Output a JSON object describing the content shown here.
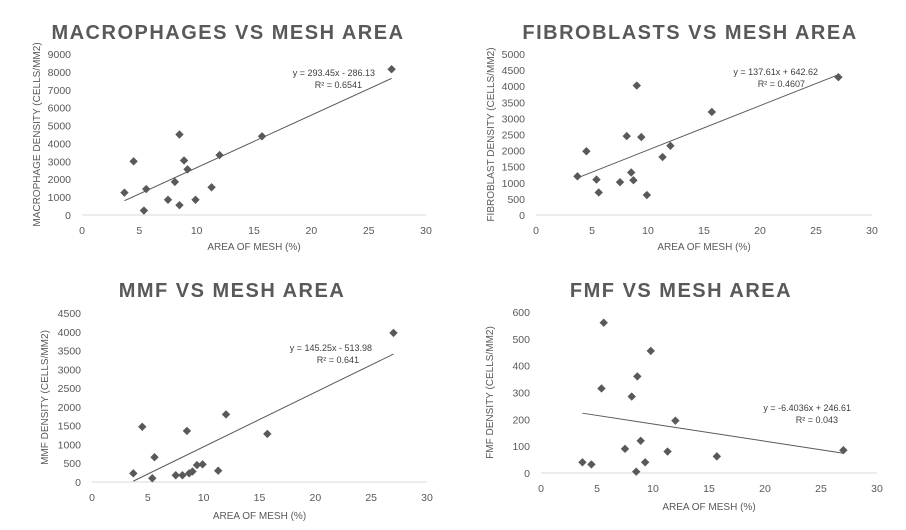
{
  "chart_data": [
    {
      "type": "scatter",
      "title": "MACROPHAGES VS MESH AREA",
      "xlabel": "AREA OF MESH (%)",
      "ylabel": "MACROPHAGE DENSITY (CELLS/MM2)",
      "xlim": [
        0,
        30
      ],
      "ylim": [
        0,
        9000
      ],
      "xticks": [
        0,
        5,
        10,
        15,
        20,
        25,
        30
      ],
      "yticks": [
        0,
        1000,
        2000,
        3000,
        4000,
        5000,
        6000,
        7000,
        8000,
        9000
      ],
      "points": [
        [
          3.7,
          1250
        ],
        [
          4.5,
          3000
        ],
        [
          5.4,
          250
        ],
        [
          5.6,
          1450
        ],
        [
          7.5,
          850
        ],
        [
          8.1,
          1850
        ],
        [
          8.5,
          550
        ],
        [
          8.5,
          4500
        ],
        [
          8.9,
          3050
        ],
        [
          9.2,
          2550
        ],
        [
          9.9,
          850
        ],
        [
          11.3,
          1550
        ],
        [
          12,
          3350
        ],
        [
          15.7,
          4400
        ],
        [
          27,
          8150
        ]
      ],
      "trendline": {
        "slope": 293.45,
        "intercept": -286.13,
        "equation": "y = 293.45x - 286.13",
        "r2": "R² = 0.6541"
      }
    },
    {
      "type": "scatter",
      "title": "FIBROBLASTS VS MESH AREA",
      "xlabel": "AREA OF MESH (%)",
      "ylabel": "FIBROBLAST DENSITY (CELLS/MM2)",
      "xlim": [
        0,
        30
      ],
      "ylim": [
        0,
        5000
      ],
      "xticks": [
        0,
        5,
        10,
        15,
        20,
        25,
        30
      ],
      "yticks": [
        0,
        500,
        1000,
        1500,
        2000,
        2500,
        3000,
        3500,
        4000,
        4500,
        5000
      ],
      "points": [
        [
          3.7,
          1200
        ],
        [
          4.5,
          1980
        ],
        [
          5.4,
          1100
        ],
        [
          5.6,
          700
        ],
        [
          7.5,
          1020
        ],
        [
          8.1,
          2450
        ],
        [
          8.5,
          1320
        ],
        [
          8.7,
          1080
        ],
        [
          9.0,
          4020
        ],
        [
          9.4,
          2420
        ],
        [
          9.9,
          620
        ],
        [
          11.3,
          1800
        ],
        [
          12,
          2150
        ],
        [
          15.7,
          3200
        ],
        [
          27,
          4280
        ]
      ],
      "trendline": {
        "slope": 137.61,
        "intercept": 642.62,
        "equation": "y = 137.61x + 642.62",
        "r2": "R² = 0.4607"
      }
    },
    {
      "type": "scatter",
      "title": "MMF VS MESH AREA",
      "xlabel": "AREA OF MESH (%)",
      "ylabel": "MMF DENSITY (CELLS/MM2)",
      "xlim": [
        0,
        30
      ],
      "ylim": [
        0,
        4500
      ],
      "xticks": [
        0,
        5,
        10,
        15,
        20,
        25,
        30
      ],
      "yticks": [
        0,
        500,
        1000,
        1500,
        2000,
        2500,
        3000,
        3500,
        4000,
        4500
      ],
      "points": [
        [
          3.7,
          230
        ],
        [
          4.5,
          1470
        ],
        [
          5.4,
          100
        ],
        [
          5.6,
          660
        ],
        [
          7.5,
          180
        ],
        [
          8.1,
          180
        ],
        [
          8.5,
          1360
        ],
        [
          8.7,
          230
        ],
        [
          9.0,
          280
        ],
        [
          9.4,
          450
        ],
        [
          9.9,
          470
        ],
        [
          11.3,
          300
        ],
        [
          12,
          1800
        ],
        [
          15.7,
          1280
        ],
        [
          27,
          3970
        ]
      ],
      "trendline": {
        "slope": 145.25,
        "intercept": -513.98,
        "equation": "y = 145.25x - 513.98",
        "r2": "R² = 0.641"
      }
    },
    {
      "type": "scatter",
      "title": "FMF VS MESH AREA",
      "xlabel": "AREA OF MESH (%)",
      "ylabel": "FMF DENSITY (CELLS/MM2)",
      "xlim": [
        0,
        30
      ],
      "ylim": [
        0,
        600
      ],
      "xticks": [
        0,
        5,
        10,
        15,
        20,
        25,
        30
      ],
      "yticks": [
        0,
        100,
        200,
        300,
        400,
        500,
        600
      ],
      "points": [
        [
          3.7,
          40
        ],
        [
          4.5,
          32
        ],
        [
          5.4,
          315
        ],
        [
          5.6,
          560
        ],
        [
          7.5,
          90
        ],
        [
          8.1,
          285
        ],
        [
          8.5,
          5
        ],
        [
          8.6,
          360
        ],
        [
          8.9,
          120
        ],
        [
          9.3,
          40
        ],
        [
          9.8,
          455
        ],
        [
          11.3,
          80
        ],
        [
          12,
          195
        ],
        [
          15.7,
          62
        ],
        [
          27,
          85
        ]
      ],
      "trendline": {
        "slope": -6.4036,
        "intercept": 246.61,
        "equation": "y = -6.4036x + 246.61",
        "r2": "R² = 0.043"
      }
    }
  ]
}
